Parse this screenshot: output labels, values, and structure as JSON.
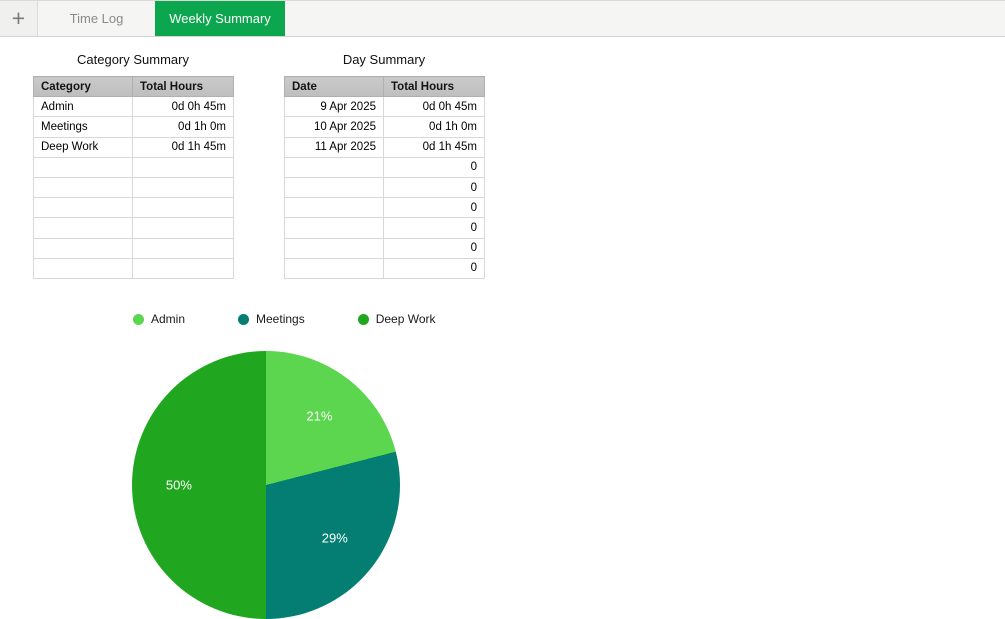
{
  "tabbar": {
    "plus_label": "+",
    "tabs": [
      {
        "label": "Time Log",
        "active": false
      },
      {
        "label": "Weekly Summary",
        "active": true
      }
    ],
    "active_tab_color": "#0CA64F"
  },
  "tables": {
    "category_summary": {
      "title": "Category Summary",
      "headers": [
        "Category",
        "Total Hours"
      ],
      "col_align": [
        "left",
        "right"
      ],
      "rows": [
        [
          "Admin",
          "0d 0h 45m"
        ],
        [
          "Meetings",
          "0d 1h 0m"
        ],
        [
          "Deep Work",
          "0d 1h 45m"
        ],
        [
          "",
          ""
        ],
        [
          "",
          ""
        ],
        [
          "",
          ""
        ],
        [
          "",
          ""
        ],
        [
          "",
          ""
        ],
        [
          "",
          ""
        ]
      ]
    },
    "day_summary": {
      "title": "Day Summary",
      "headers": [
        "Date",
        "Total Hours"
      ],
      "col_align": [
        "right",
        "right"
      ],
      "rows": [
        [
          "9 Apr 2025",
          "0d 0h 45m"
        ],
        [
          "10 Apr 2025",
          "0d 1h 0m"
        ],
        [
          "11 Apr 2025",
          "0d 1h 45m"
        ],
        [
          "",
          "0"
        ],
        [
          "",
          "0"
        ],
        [
          "",
          "0"
        ],
        [
          "",
          "0"
        ],
        [
          "",
          "0"
        ],
        [
          "",
          "0"
        ]
      ]
    }
  },
  "chart_data": {
    "type": "pie",
    "title": "",
    "legend_position": "top",
    "start_angle_deg": 0,
    "direction": "clockwise",
    "label_radius_factor": 0.65,
    "slices": [
      {
        "label": "Admin",
        "value_pct": 21,
        "display": "21%",
        "color": "#5BD64E"
      },
      {
        "label": "Meetings",
        "value_pct": 29,
        "display": "29%",
        "color": "#047E72"
      },
      {
        "label": "Deep Work",
        "value_pct": 50,
        "display": "50%",
        "color": "#21A71F"
      }
    ]
  }
}
